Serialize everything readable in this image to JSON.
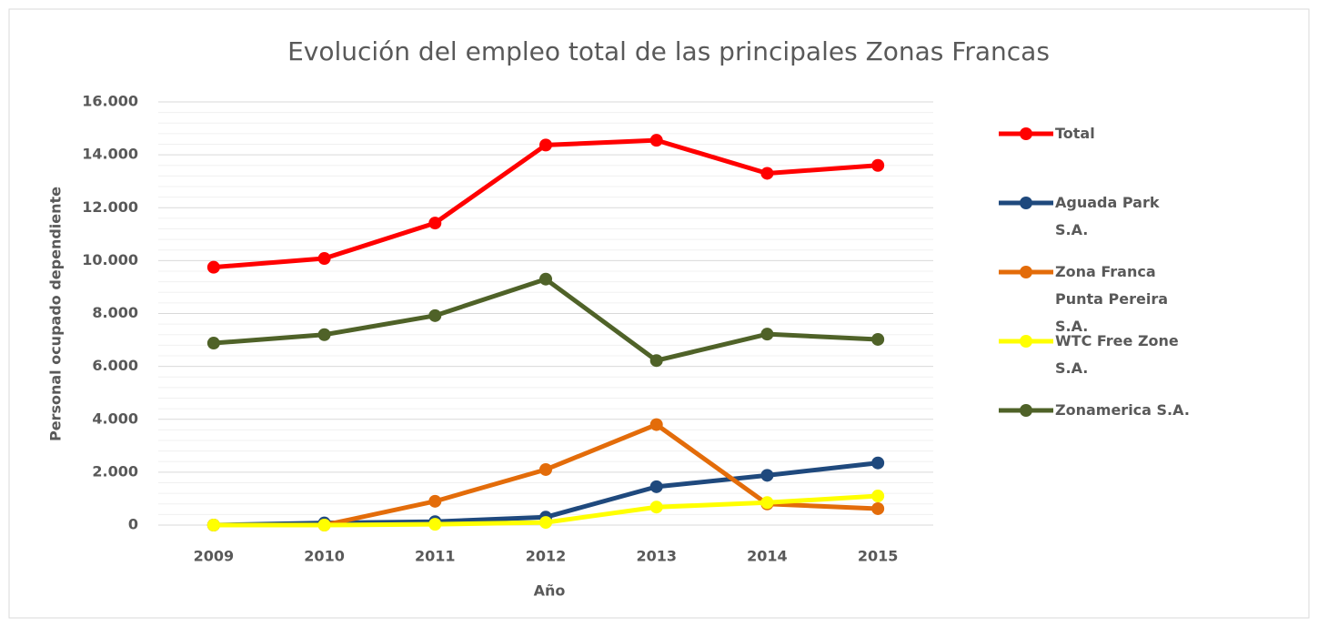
{
  "chart_data": {
    "type": "line",
    "title": "Evolución del empleo total de las principales Zonas Francas",
    "x_label": "Año",
    "y_label": "Personal ocupado dependiente",
    "categories": [
      "2009",
      "2010",
      "2011",
      "2012",
      "2013",
      "2014",
      "2015"
    ],
    "series": [
      {
        "name": "Total",
        "color": "#ff0000",
        "values": [
          9750,
          10080,
          11420,
          14370,
          14550,
          13300,
          13600
        ]
      },
      {
        "name": "Aguada Park S.A.",
        "color": "#1f497d",
        "values": [
          0,
          80,
          130,
          300,
          1450,
          1880,
          2350
        ]
      },
      {
        "name": "Zona Franca Punta Pereira S.A.",
        "color": "#e36c0a",
        "values": [
          0,
          0,
          900,
          2100,
          3800,
          800,
          620
        ]
      },
      {
        "name": "WTC Free Zone S.A.",
        "color": "#ffff00",
        "values": [
          0,
          0,
          30,
          100,
          680,
          850,
          1100
        ]
      },
      {
        "name": "Zonamerica S.A.",
        "color": "#4f6228",
        "values": [
          6880,
          7200,
          7920,
          9300,
          6220,
          7220,
          7020
        ]
      }
    ],
    "ylim": [
      0,
      16000
    ],
    "yticks": [
      0,
      {
        "value": 2000,
        "label": "2.000"
      },
      {
        "value": 4000,
        "label": "4.000"
      },
      {
        "value": 6000,
        "label": "6.000"
      },
      {
        "value": 8000,
        "label": "8.000"
      },
      {
        "value": 10000,
        "label": "10.000"
      },
      {
        "value": 12000,
        "label": "12.000"
      },
      {
        "value": 14000,
        "label": "14.000"
      },
      {
        "value": 16000,
        "label": "16.000"
      }
    ],
    "grid": true,
    "legend": "right"
  }
}
